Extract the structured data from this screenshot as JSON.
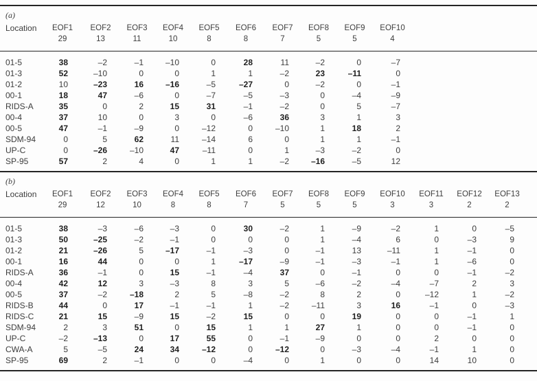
{
  "colors": {
    "text": "#3c3c3c",
    "bold_text": "#1e1e1e",
    "rule": "#242424",
    "background": "#fdfdfd"
  },
  "tables": [
    {
      "label": "(a)",
      "location_header": "Location",
      "columns": [
        {
          "name": "EOF1",
          "pct": 29
        },
        {
          "name": "EOF2",
          "pct": 13
        },
        {
          "name": "EOF3",
          "pct": 11
        },
        {
          "name": "EOF4",
          "pct": 10
        },
        {
          "name": "EOF5",
          "pct": 8
        },
        {
          "name": "EOF6",
          "pct": 8
        },
        {
          "name": "EOF7",
          "pct": 7
        },
        {
          "name": "EOF8",
          "pct": 5
        },
        {
          "name": "EOF9",
          "pct": 5
        },
        {
          "name": "EOF10",
          "pct": 4
        }
      ],
      "rows": [
        {
          "location": "01-5",
          "values": [
            38,
            -2,
            -1,
            -10,
            0,
            28,
            11,
            -2,
            0,
            -7
          ],
          "bold": [
            0,
            5
          ]
        },
        {
          "location": "01-3",
          "values": [
            52,
            -10,
            0,
            0,
            1,
            1,
            -2,
            23,
            -11,
            0
          ],
          "bold": [
            0,
            7,
            8
          ]
        },
        {
          "location": "01-2",
          "values": [
            10,
            -23,
            16,
            -16,
            -5,
            -27,
            0,
            -2,
            0,
            -1
          ],
          "bold": [
            1,
            2,
            3,
            5
          ]
        },
        {
          "location": "00-1",
          "values": [
            18,
            47,
            -6,
            0,
            -7,
            -5,
            -3,
            0,
            -4,
            -9
          ],
          "bold": [
            0,
            1
          ]
        },
        {
          "location": "RIDS-A",
          "values": [
            35,
            0,
            2,
            15,
            31,
            -1,
            -2,
            0,
            5,
            -7
          ],
          "bold": [
            0,
            3,
            4
          ]
        },
        {
          "location": "00-4",
          "values": [
            37,
            10,
            0,
            3,
            0,
            -6,
            36,
            3,
            1,
            3
          ],
          "bold": [
            0,
            6
          ]
        },
        {
          "location": "00-5",
          "values": [
            47,
            -1,
            -9,
            0,
            -12,
            0,
            -10,
            1,
            18,
            2
          ],
          "bold": [
            0,
            8
          ]
        },
        {
          "location": "SDM-94",
          "values": [
            0,
            5,
            62,
            11,
            -14,
            6,
            0,
            1,
            1,
            -1
          ],
          "bold": [
            2
          ]
        },
        {
          "location": "UP-C",
          "values": [
            0,
            -26,
            -10,
            47,
            -11,
            0,
            1,
            -3,
            -2,
            0
          ],
          "bold": [
            1,
            3
          ]
        },
        {
          "location": "SP-95",
          "values": [
            57,
            2,
            4,
            0,
            1,
            1,
            -2,
            -16,
            -5,
            12
          ],
          "bold": [
            0,
            7
          ]
        }
      ]
    },
    {
      "label": "(b)",
      "location_header": "Location",
      "columns": [
        {
          "name": "EOF1",
          "pct": 29
        },
        {
          "name": "EOF2",
          "pct": 12
        },
        {
          "name": "EOF3",
          "pct": 10
        },
        {
          "name": "EOF4",
          "pct": 8
        },
        {
          "name": "EOF5",
          "pct": 8
        },
        {
          "name": "EOF6",
          "pct": 7
        },
        {
          "name": "EOF7",
          "pct": 5
        },
        {
          "name": "EOF8",
          "pct": 5
        },
        {
          "name": "EOF9",
          "pct": 5
        },
        {
          "name": "EOF10",
          "pct": 3
        },
        {
          "name": "EOF11",
          "pct": 3
        },
        {
          "name": "EOF12",
          "pct": 2
        },
        {
          "name": "EOF13",
          "pct": 2
        }
      ],
      "rows": [
        {
          "location": "01-5",
          "values": [
            38,
            -3,
            -6,
            -3,
            0,
            30,
            -2,
            1,
            -9,
            -2,
            1,
            0,
            -5
          ],
          "bold": [
            0,
            5
          ]
        },
        {
          "location": "01-3",
          "values": [
            50,
            -25,
            -2,
            -1,
            0,
            0,
            0,
            1,
            -4,
            6,
            0,
            -3,
            9
          ],
          "bold": [
            0,
            1
          ]
        },
        {
          "location": "01-2",
          "values": [
            21,
            -26,
            5,
            -17,
            -1,
            -3,
            0,
            -1,
            13,
            -11,
            1,
            -1,
            0
          ],
          "bold": [
            0,
            1,
            3
          ]
        },
        {
          "location": "00-1",
          "values": [
            16,
            44,
            0,
            0,
            1,
            -17,
            -9,
            -1,
            -3,
            -1,
            1,
            -6,
            0
          ],
          "bold": [
            0,
            1,
            5
          ]
        },
        {
          "location": "RIDS-A",
          "values": [
            36,
            -1,
            0,
            15,
            -1,
            -4,
            37,
            0,
            -1,
            0,
            0,
            -1,
            -2
          ],
          "bold": [
            0,
            3,
            6
          ]
        },
        {
          "location": "00-4",
          "values": [
            42,
            12,
            3,
            -3,
            8,
            3,
            5,
            -6,
            -2,
            -4,
            -7,
            2,
            3
          ],
          "bold": [
            0,
            1
          ]
        },
        {
          "location": "00-5",
          "values": [
            37,
            -2,
            -18,
            2,
            5,
            -8,
            -2,
            8,
            2,
            0,
            -12,
            1,
            -2
          ],
          "bold": [
            0,
            2
          ]
        },
        {
          "location": "RIDS-B",
          "values": [
            44,
            0,
            17,
            -1,
            -1,
            1,
            -2,
            -11,
            3,
            16,
            -1,
            0,
            -3
          ],
          "bold": [
            0,
            2,
            9
          ]
        },
        {
          "location": "RIDS-C",
          "values": [
            21,
            15,
            -9,
            15,
            -2,
            15,
            0,
            0,
            19,
            0,
            0,
            -1,
            1
          ],
          "bold": [
            0,
            1,
            3,
            5,
            8
          ]
        },
        {
          "location": "SDM-94",
          "values": [
            2,
            3,
            51,
            0,
            15,
            1,
            1,
            27,
            1,
            0,
            0,
            -1,
            0
          ],
          "bold": [
            2,
            4,
            7
          ]
        },
        {
          "location": "UP-C",
          "values": [
            -2,
            -13,
            0,
            17,
            55,
            0,
            -1,
            -9,
            0,
            0,
            2,
            0,
            0
          ],
          "bold": [
            1,
            3,
            4
          ]
        },
        {
          "location": "CWA-A",
          "values": [
            5,
            -5,
            24,
            34,
            -12,
            0,
            -12,
            0,
            -3,
            -4,
            -1,
            1,
            0
          ],
          "bold": [
            2,
            3,
            4,
            6
          ]
        },
        {
          "location": "SP-95",
          "values": [
            69,
            2,
            -1,
            0,
            0,
            -4,
            0,
            1,
            0,
            0,
            14,
            10,
            0
          ],
          "bold": [
            0
          ]
        }
      ]
    }
  ]
}
